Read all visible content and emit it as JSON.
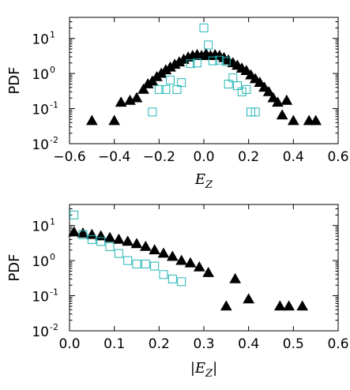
{
  "chart_data": [
    {
      "type": "scatter",
      "title": "",
      "xlabel": "E_Z",
      "ylabel": "PDF",
      "xlim": [
        -0.6,
        0.6
      ],
      "yscale": "log",
      "ylim_exp": [
        -2,
        1.6
      ],
      "xticks": [
        {
          "v": -0.6,
          "label": "−0.6"
        },
        {
          "v": -0.4,
          "label": "−0.4"
        },
        {
          "v": -0.2,
          "label": "−0.2"
        },
        {
          "v": 0.0,
          "label": "0.0"
        },
        {
          "v": 0.2,
          "label": "0.2"
        },
        {
          "v": 0.4,
          "label": "0.4"
        },
        {
          "v": 0.6,
          "label": "0.6"
        }
      ],
      "yticks": [
        {
          "exp": 1,
          "base": "10",
          "sup": "1"
        },
        {
          "exp": 0,
          "base": "10",
          "sup": "0"
        },
        {
          "exp": -1,
          "base": "10",
          "sup": "-1"
        },
        {
          "exp": -2,
          "base": "10",
          "sup": "-2"
        }
      ],
      "series": [
        {
          "marker": "triangle",
          "color": "#000000",
          "points": [
            [
              -0.5,
              0.045
            ],
            [
              -0.4,
              0.045
            ],
            [
              -0.37,
              0.15
            ],
            [
              -0.33,
              0.17
            ],
            [
              -0.3,
              0.2
            ],
            [
              -0.27,
              0.35
            ],
            [
              -0.25,
              0.5
            ],
            [
              -0.23,
              0.6
            ],
            [
              -0.21,
              0.8
            ],
            [
              -0.19,
              1.0
            ],
            [
              -0.17,
              1.25
            ],
            [
              -0.15,
              1.5
            ],
            [
              -0.13,
              1.8
            ],
            [
              -0.11,
              2.1
            ],
            [
              -0.09,
              2.5
            ],
            [
              -0.07,
              2.9
            ],
            [
              -0.05,
              3.2
            ],
            [
              -0.03,
              3.4
            ],
            [
              -0.01,
              3.2
            ],
            [
              0.01,
              3.6
            ],
            [
              0.03,
              3.2
            ],
            [
              0.05,
              3.4
            ],
            [
              0.07,
              3.2
            ],
            [
              0.09,
              2.8
            ],
            [
              0.11,
              2.4
            ],
            [
              0.13,
              2.0
            ],
            [
              0.15,
              1.7
            ],
            [
              0.17,
              1.4
            ],
            [
              0.19,
              1.2
            ],
            [
              0.21,
              0.9
            ],
            [
              0.23,
              0.7
            ],
            [
              0.25,
              0.55
            ],
            [
              0.27,
              0.4
            ],
            [
              0.29,
              0.3
            ],
            [
              0.31,
              0.2
            ],
            [
              0.33,
              0.15
            ],
            [
              0.35,
              0.065
            ],
            [
              0.37,
              0.17
            ],
            [
              0.4,
              0.045
            ],
            [
              0.47,
              0.045
            ],
            [
              0.5,
              0.045
            ]
          ]
        },
        {
          "marker": "square",
          "color": "#22b5b5",
          "points": [
            [
              -0.23,
              0.08
            ],
            [
              -0.2,
              0.35
            ],
            [
              -0.17,
              0.35
            ],
            [
              -0.15,
              0.65
            ],
            [
              -0.12,
              0.35
            ],
            [
              -0.1,
              0.55
            ],
            [
              -0.06,
              1.9
            ],
            [
              -0.03,
              2.0
            ],
            [
              0.0,
              20.0
            ],
            [
              0.02,
              6.5
            ],
            [
              0.04,
              2.3
            ],
            [
              0.07,
              2.4
            ],
            [
              0.1,
              2.2
            ],
            [
              0.11,
              0.5
            ],
            [
              0.13,
              0.75
            ],
            [
              0.15,
              0.45
            ],
            [
              0.17,
              0.3
            ],
            [
              0.19,
              0.35
            ],
            [
              0.21,
              0.08
            ],
            [
              0.23,
              0.08
            ]
          ]
        }
      ]
    },
    {
      "type": "scatter",
      "title": "",
      "xlabel": "|E_Z|",
      "ylabel": "PDF",
      "xlim": [
        0.0,
        0.6
      ],
      "yscale": "log",
      "ylim_exp": [
        -2,
        1.6
      ],
      "xticks": [
        {
          "v": 0.0,
          "label": "0.0"
        },
        {
          "v": 0.1,
          "label": "0.1"
        },
        {
          "v": 0.2,
          "label": "0.2"
        },
        {
          "v": 0.3,
          "label": "0.3"
        },
        {
          "v": 0.4,
          "label": "0.4"
        },
        {
          "v": 0.5,
          "label": "0.5"
        },
        {
          "v": 0.6,
          "label": "0.6"
        }
      ],
      "yticks": [
        {
          "exp": 1,
          "base": "10",
          "sup": "1"
        },
        {
          "exp": 0,
          "base": "10",
          "sup": "0"
        },
        {
          "exp": -1,
          "base": "10",
          "sup": "-1"
        },
        {
          "exp": -2,
          "base": "10",
          "sup": "-2"
        }
      ],
      "series": [
        {
          "marker": "triangle",
          "color": "#000000",
          "points": [
            [
              0.01,
              6.5
            ],
            [
              0.03,
              6.0
            ],
            [
              0.05,
              5.5
            ],
            [
              0.07,
              5.0
            ],
            [
              0.09,
              4.5
            ],
            [
              0.11,
              4.0
            ],
            [
              0.13,
              3.5
            ],
            [
              0.15,
              3.0
            ],
            [
              0.17,
              2.5
            ],
            [
              0.19,
              2.0
            ],
            [
              0.21,
              1.6
            ],
            [
              0.23,
              1.3
            ],
            [
              0.25,
              1.0
            ],
            [
              0.27,
              0.85
            ],
            [
              0.29,
              0.65
            ],
            [
              0.31,
              0.45
            ],
            [
              0.35,
              0.05
            ],
            [
              0.37,
              0.3
            ],
            [
              0.4,
              0.08
            ],
            [
              0.47,
              0.05
            ],
            [
              0.49,
              0.05
            ],
            [
              0.52,
              0.05
            ]
          ]
        },
        {
          "marker": "square",
          "color": "#22b5b5",
          "points": [
            [
              0.01,
              20.0
            ],
            [
              0.03,
              5.5
            ],
            [
              0.05,
              4.0
            ],
            [
              0.07,
              3.5
            ],
            [
              0.09,
              2.5
            ],
            [
              0.11,
              1.6
            ],
            [
              0.13,
              1.0
            ],
            [
              0.15,
              0.8
            ],
            [
              0.17,
              0.8
            ],
            [
              0.19,
              0.7
            ],
            [
              0.21,
              0.4
            ],
            [
              0.23,
              0.3
            ],
            [
              0.25,
              0.25
            ]
          ]
        }
      ]
    }
  ]
}
